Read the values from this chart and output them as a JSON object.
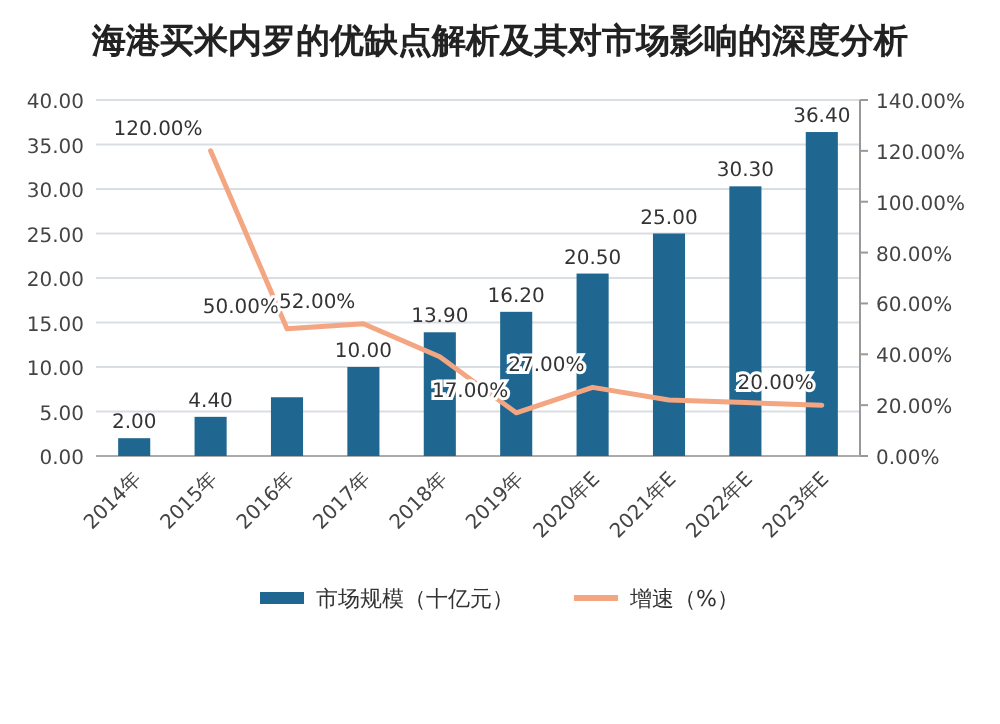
{
  "chart_data": {
    "type": "bar",
    "title": "海港买米内罗的优缺点解析及其对市场影响的深度分析",
    "categories": [
      "2014年",
      "2015年",
      "2016年",
      "2017年",
      "2018年",
      "2019年",
      "2020年E",
      "2021年E",
      "2022年E",
      "2023年E"
    ],
    "series": [
      {
        "name": "市场规模（十亿元）",
        "color": "#1f6690",
        "values": [
          2.0,
          4.4,
          6.6,
          10.0,
          13.9,
          16.2,
          20.5,
          25.0,
          30.3,
          36.4
        ],
        "value_labels": [
          "2.00",
          "4.40",
          null,
          "10.00",
          "13.90",
          "16.20",
          "20.50",
          "25.00",
          "30.30",
          "36.40"
        ]
      },
      {
        "name": "增速（%）",
        "type": "line",
        "axis": "y2",
        "color": "#f4a582",
        "values": [
          null,
          120,
          50,
          52,
          39,
          17,
          27,
          22,
          21,
          20
        ],
        "value_labels": [
          null,
          "120.00%",
          "50.00%",
          "52.00%",
          null,
          "17.00%",
          "27.00%",
          null,
          null,
          "20.00%"
        ]
      }
    ],
    "ylim": [
      0,
      40
    ],
    "yticks": [
      {
        "value": 0,
        "label": "0.00"
      },
      {
        "value": 5,
        "label": "5.00"
      },
      {
        "value": 10,
        "label": "10.00"
      },
      {
        "value": 15,
        "label": "15.00"
      },
      {
        "value": 20,
        "label": "20.00"
      },
      {
        "value": 25,
        "label": "25.00"
      },
      {
        "value": 30,
        "label": "30.00"
      },
      {
        "value": 35,
        "label": "35.00"
      },
      {
        "value": 40,
        "label": "40.00"
      }
    ],
    "y2lim": [
      0,
      140
    ],
    "y2ticks": [
      {
        "value": 0,
        "label": "0.00%"
      },
      {
        "value": 20,
        "label": "20.00%"
      },
      {
        "value": 40,
        "label": "40.00%"
      },
      {
        "value": 60,
        "label": "60.00%"
      },
      {
        "value": 80,
        "label": "80.00%"
      },
      {
        "value": 100,
        "label": "100.00%"
      },
      {
        "value": 120,
        "label": "120.00%"
      },
      {
        "value": 140,
        "label": "140.00%"
      }
    ],
    "grid": "y",
    "legend": "bottom"
  }
}
